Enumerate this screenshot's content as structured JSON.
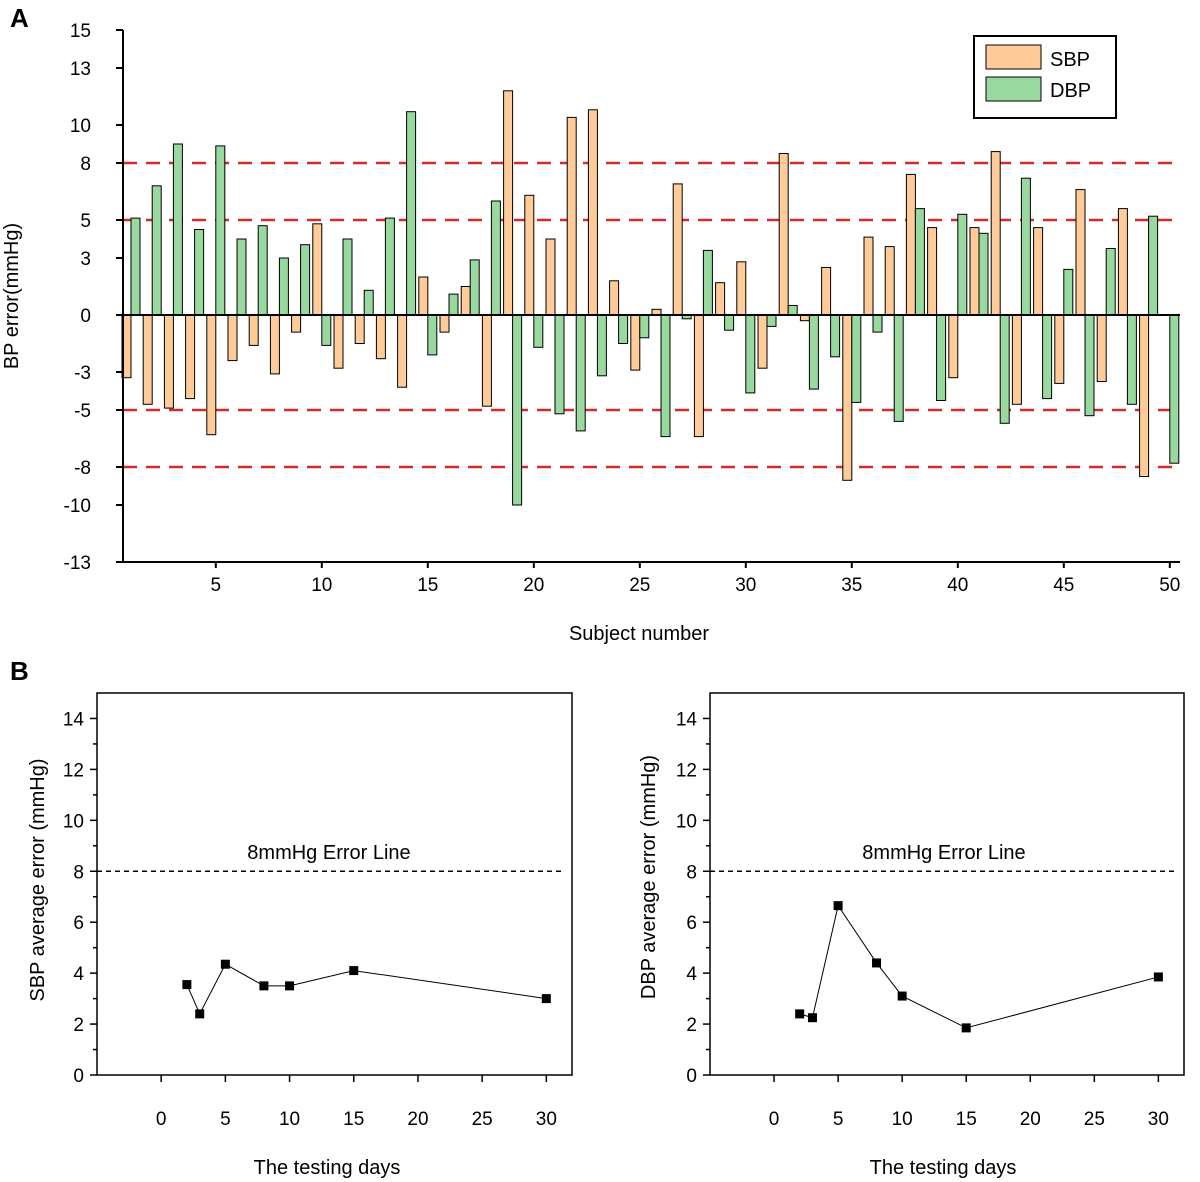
{
  "panels": {
    "a_label": "A",
    "b_label": "B"
  },
  "colors": {
    "sbp": "#FFCC99",
    "dbp": "#99D9A0",
    "ref_line_a": "#D42A2A",
    "ref_line_b": "#000000",
    "axis": "#000000"
  },
  "chart_data": [
    {
      "type": "bar",
      "panel": "A",
      "title": "",
      "xlabel": "Subject number",
      "ylabel": "BP error(mmHg)",
      "ylim": [
        -13,
        15
      ],
      "y_ticks": [
        15,
        13,
        10,
        8,
        5,
        3,
        0,
        -3,
        -5,
        -8,
        -10,
        -13
      ],
      "y_tick_labels": [
        "15",
        "13",
        "10",
        "8",
        "5",
        "3",
        "0",
        "-3",
        "-5",
        "-8",
        "-10",
        "-13"
      ],
      "x_ticks": [
        5,
        10,
        15,
        20,
        25,
        30,
        35,
        40,
        45,
        50
      ],
      "x_tick_labels": [
        "5",
        "10",
        "15",
        "20",
        "25",
        "30",
        "35",
        "40",
        "45",
        "50"
      ],
      "reference_lines": [
        8,
        5,
        -5,
        -8
      ],
      "legend": [
        "SBP",
        "DBP"
      ],
      "legend_position": "top-right",
      "series": [
        {
          "name": "SBP",
          "values": [
            -3.3,
            -4.7,
            -4.9,
            -4.4,
            -6.3,
            -2.4,
            -1.6,
            -3.1,
            -0.9,
            4.8,
            -2.8,
            -1.5,
            -2.3,
            -3.8,
            2.0,
            -0.9,
            1.5,
            -4.8,
            11.8,
            6.3,
            4.0,
            10.4,
            10.8,
            1.8,
            -2.9,
            0.3,
            6.9,
            -6.4,
            1.7,
            2.8,
            -2.8,
            8.5,
            -0.3,
            2.5,
            -8.7,
            4.1,
            3.6,
            7.4,
            4.6,
            -3.3,
            4.6,
            8.6,
            -4.7,
            4.6,
            -3.6,
            6.6,
            -3.5,
            5.6,
            -8.5,
            null
          ],
          "values_note": "Subject 50 shows a second (DBP) bar; SBP for subject 49 is shown at 49 position"
        },
        {
          "name": "DBP",
          "values": [
            5.1,
            6.8,
            9.0,
            4.5,
            8.9,
            4.0,
            4.7,
            3.0,
            3.7,
            -1.6,
            4.0,
            1.3,
            5.1,
            10.7,
            -2.1,
            1.1,
            2.9,
            6.0,
            -10.0,
            -1.7,
            -5.2,
            -6.1,
            -3.2,
            -1.5,
            -1.2,
            -6.4,
            -0.2,
            3.4,
            -0.8,
            -4.1,
            -0.6,
            0.5,
            -3.9,
            -2.2,
            -4.6,
            -0.9,
            -5.6,
            5.6,
            -4.5,
            5.3,
            4.3,
            -5.7,
            7.2,
            -4.4,
            2.4,
            -5.3,
            3.5,
            -4.7,
            5.2,
            -7.8
          ]
        }
      ]
    },
    {
      "type": "line",
      "panel": "B-left",
      "title": "",
      "xlabel": "The testing days",
      "ylabel": "SBP average error (mmHg)",
      "xlim": [
        -5,
        32
      ],
      "ylim": [
        0,
        15
      ],
      "x_ticks": [
        0,
        5,
        10,
        15,
        20,
        25,
        30
      ],
      "x_tick_labels": [
        "0",
        "5",
        "10",
        "15",
        "20",
        "25",
        "30"
      ],
      "y_ticks": [
        0,
        2,
        4,
        6,
        8,
        10,
        12,
        14
      ],
      "y_tick_labels": [
        "0",
        "2",
        "4",
        "6",
        "8",
        "10",
        "12",
        "14"
      ],
      "reference_line": {
        "y": 8,
        "label": "8mmHg Error Line"
      },
      "x": [
        2,
        3,
        5,
        8,
        10,
        15,
        30
      ],
      "values": [
        3.55,
        2.4,
        4.35,
        3.5,
        3.5,
        4.1,
        3.0
      ]
    },
    {
      "type": "line",
      "panel": "B-right",
      "title": "",
      "xlabel": "The testing days",
      "ylabel": "DBP average error (mmHg)",
      "xlim": [
        -5,
        32
      ],
      "ylim": [
        0,
        15
      ],
      "x_ticks": [
        0,
        5,
        10,
        15,
        20,
        25,
        30
      ],
      "x_tick_labels": [
        "0",
        "5",
        "10",
        "15",
        "20",
        "25",
        "30"
      ],
      "y_ticks": [
        0,
        2,
        4,
        6,
        8,
        10,
        12,
        14
      ],
      "y_tick_labels": [
        "0",
        "2",
        "4",
        "6",
        "8",
        "10",
        "12",
        "14"
      ],
      "reference_line": {
        "y": 8,
        "label": "8mmHg Error Line"
      },
      "x": [
        2,
        3,
        5,
        8,
        10,
        15,
        30
      ],
      "values": [
        2.4,
        2.25,
        6.65,
        4.4,
        3.1,
        1.85,
        3.85
      ]
    }
  ]
}
